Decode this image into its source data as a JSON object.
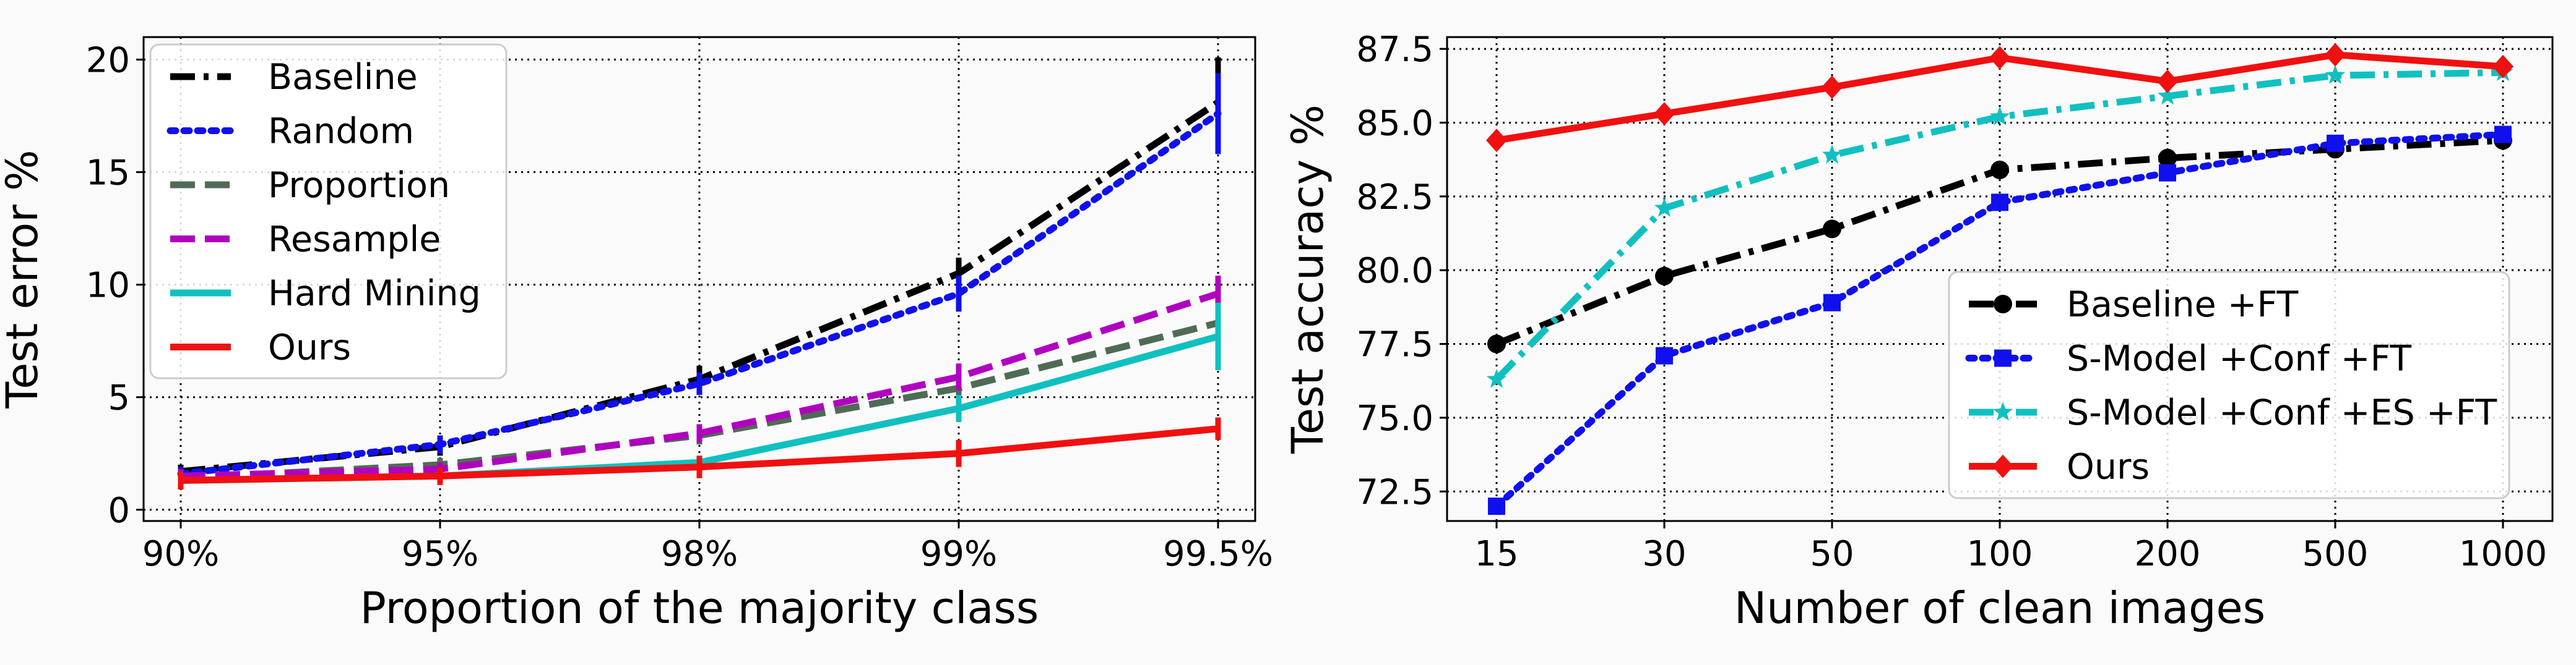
{
  "chart_data": [
    {
      "type": "line",
      "title": "",
      "xlabel": "Proportion of the majority class",
      "ylabel": "Test error %",
      "categories": [
        "90%",
        "95%",
        "98%",
        "99%",
        "99.5%"
      ],
      "ylim": [
        -0.5,
        21
      ],
      "yticks": [
        0,
        5,
        10,
        15,
        20
      ],
      "grid": true,
      "legend_position": "top-left",
      "series": [
        {
          "name": "Baseline",
          "color": "#000000",
          "dash": "dashdot",
          "values": [
            1.7,
            2.8,
            5.8,
            10.5,
            18.1
          ],
          "err": [
            0.3,
            0.4,
            0.6,
            0.7,
            2.0
          ]
        },
        {
          "name": "Random",
          "color": "#1010ee",
          "dash": "dotted",
          "values": [
            1.6,
            2.9,
            5.6,
            9.6,
            17.6
          ],
          "err": [
            0.3,
            0.4,
            0.5,
            0.8,
            1.8
          ]
        },
        {
          "name": "Proportion",
          "color": "#4f6b55",
          "dash": "dashed",
          "values": [
            1.4,
            2.0,
            3.3,
            5.4,
            8.3
          ],
          "err": [
            0.3,
            0.3,
            0.4,
            0.5,
            0.6
          ]
        },
        {
          "name": "Resample",
          "color": "#b000c0",
          "dash": "dashed",
          "values": [
            1.5,
            1.8,
            3.4,
            5.9,
            9.6
          ],
          "err": [
            0.3,
            0.3,
            0.4,
            0.6,
            0.8
          ]
        },
        {
          "name": "Hard Mining",
          "color": "#10c0c0",
          "dash": "solid",
          "values": [
            1.3,
            1.5,
            2.1,
            4.5,
            7.7
          ],
          "err": [
            0.3,
            0.3,
            0.3,
            0.6,
            1.5
          ]
        },
        {
          "name": "Ours",
          "color": "#f01010",
          "dash": "solid",
          "values": [
            1.3,
            1.5,
            1.9,
            2.5,
            3.6
          ],
          "err": [
            0.4,
            0.4,
            0.5,
            0.6,
            0.5
          ]
        }
      ]
    },
    {
      "type": "line",
      "title": "",
      "xlabel": "Number of clean images",
      "ylabel": "Test accuracy %",
      "categories": [
        "15",
        "30",
        "50",
        "100",
        "200",
        "500",
        "1000"
      ],
      "ylim": [
        71.5,
        87.9
      ],
      "yticks": [
        "72.5",
        "75.0",
        "77.5",
        "80.0",
        "82.5",
        "85.0",
        "87.5"
      ],
      "grid": true,
      "legend_position": "lower-right",
      "series": [
        {
          "name": "Baseline +FT",
          "color": "#000000",
          "dash": "dashdot",
          "marker": "circle",
          "values": [
            77.5,
            79.8,
            81.4,
            83.4,
            83.8,
            84.1,
            84.4
          ]
        },
        {
          "name": "S-Model +Conf +FT",
          "color": "#1010ee",
          "dash": "dotted",
          "marker": "square",
          "values": [
            72.0,
            77.1,
            78.9,
            82.3,
            83.3,
            84.3,
            84.6
          ]
        },
        {
          "name": "S-Model +Conf +ES +FT",
          "color": "#10c0c0",
          "dash": "dashdot",
          "marker": "star",
          "values": [
            76.3,
            82.1,
            83.9,
            85.2,
            85.9,
            86.6,
            86.7
          ]
        },
        {
          "name": "Ours",
          "color": "#f01010",
          "dash": "solid",
          "marker": "diamond",
          "values": [
            84.4,
            85.3,
            86.2,
            87.2,
            86.4,
            87.3,
            86.9
          ]
        }
      ]
    }
  ]
}
